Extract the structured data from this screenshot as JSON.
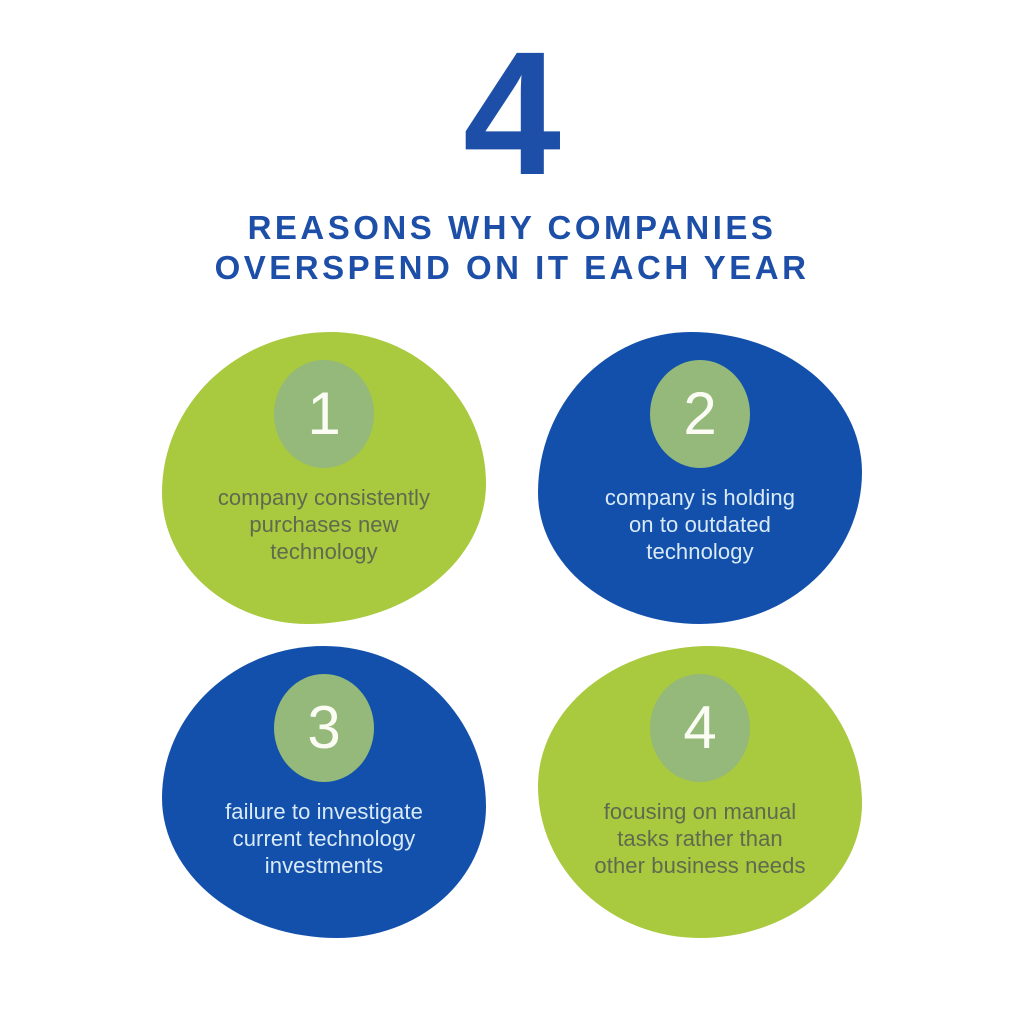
{
  "colors": {
    "background": "#ffffff",
    "brand_blue": "#1d4fa8",
    "blob_blue": "#1350ab",
    "blob_green": "#a9c93e",
    "circle_sage": "#94b97a",
    "number_white": "#fbfdf5",
    "text_on_green": "#5e6b4e",
    "text_on_blue": "#d9eaf7"
  },
  "header": {
    "big_number": "4",
    "title_line1": "REASONS WHY COMPANIES",
    "title_line2": "OVERSPEND ON IT EACH YEAR"
  },
  "reasons": [
    {
      "number": "1",
      "variant": "green",
      "text": "company consistently\npurchases new\ntechnology"
    },
    {
      "number": "2",
      "variant": "blue",
      "text": "company is holding\non to outdated\ntechnology"
    },
    {
      "number": "3",
      "variant": "blue",
      "text": "failure to investigate\ncurrent technology\ninvestments"
    },
    {
      "number": "4",
      "variant": "green",
      "text": "focusing on manual\ntasks rather than\nother business needs"
    }
  ]
}
